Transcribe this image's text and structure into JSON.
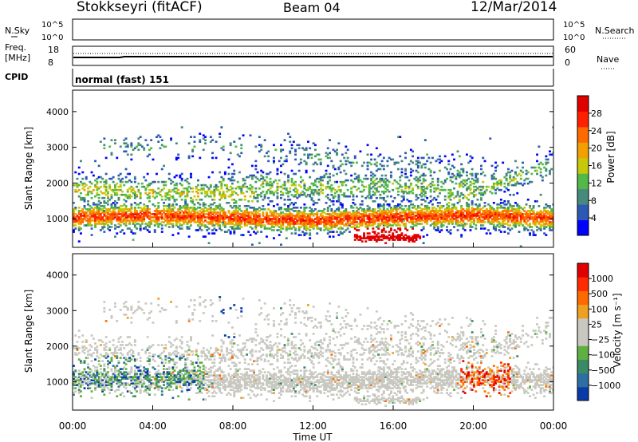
{
  "header": {
    "title": "Stokkseyri (fitACF)",
    "beam": "Beam 04",
    "date": "12/Mar/2014"
  },
  "top_panels": {
    "nsky_label": "N.Sky",
    "nsearch_label": "N.Search",
    "noise_ticks_left": [
      "10^5",
      "10^0"
    ],
    "noise_ticks_right": [
      "10^5",
      "10^0"
    ],
    "freq_label": "Freq.",
    "freq_unit": "[MHz]",
    "freq_ticks": [
      "18",
      "8"
    ],
    "nave_ticks": [
      "60",
      "0"
    ],
    "nave_label": "Nave",
    "cpid_label": "CPID",
    "cpid_value": "normal (fast) 151"
  },
  "chart_data": [
    {
      "type": "heatmap",
      "name": "power",
      "ylabel": "Slant Range [km]",
      "yticks": [
        1000,
        2000,
        3000,
        4000
      ],
      "ylim": [
        200,
        4600
      ],
      "colorbar_label": "Power [dB]",
      "colorbar_ticks": [
        "28",
        "24",
        "20",
        "16",
        "12",
        "8",
        "4"
      ],
      "colors": [
        "#0000ff",
        "#2b59b3",
        "#458a7c",
        "#52b847",
        "#c8c80a",
        "#f0a000",
        "#ff6a00",
        "#ff2000",
        "#e00000"
      ]
    },
    {
      "type": "heatmap",
      "name": "velocity",
      "ylabel": "Slant Range [km]",
      "xlabel": "Time UT",
      "yticks": [
        1000,
        2000,
        3000,
        4000
      ],
      "ylim": [
        200,
        4600
      ],
      "xticks": [
        "00:00",
        "04:00",
        "08:00",
        "12:00",
        "16:00",
        "20:00",
        "00:00"
      ],
      "colorbar_label": "Velocity [m s⁻¹]",
      "colorbar_ticks": [
        "1000",
        "500",
        "100",
        "25",
        "−25",
        "−100",
        "−500",
        "−1000"
      ],
      "colors": [
        "#0a3aa8",
        "#2d6fa2",
        "#3a8a66",
        "#5fb040",
        "#c8c8c0",
        "#c8c8c0",
        "#f0a020",
        "#ff6a00",
        "#ff2a00",
        "#e00000"
      ]
    }
  ]
}
